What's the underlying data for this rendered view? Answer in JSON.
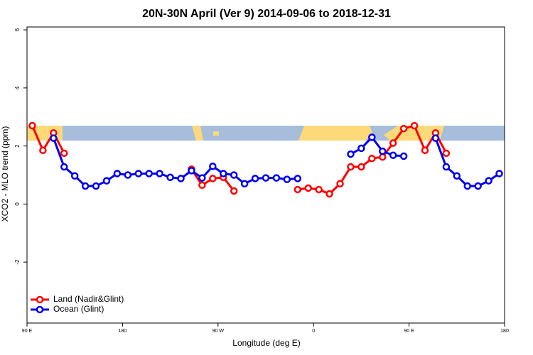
{
  "chart_data": {
    "type": "line",
    "title": "20N-30N April (Ver 9)   2014-09-06 to 2018-12-31",
    "xlabel": "Longitude (deg E)",
    "ylabel": "XCO2 - MLO trend (ppm)",
    "x": [
      95,
      105,
      115,
      125,
      135,
      145,
      155,
      165,
      175,
      185,
      195,
      205,
      215,
      225,
      235,
      245,
      255,
      265,
      275,
      285,
      295,
      305,
      315,
      325,
      335,
      345,
      355,
      365,
      375,
      385,
      395,
      405,
      415,
      425,
      435,
      445,
      455,
      465,
      475,
      485,
      495,
      505,
      515,
      525,
      535
    ],
    "series": [
      {
        "name": "Land (Nadir&Glint)",
        "color": "#ff0000",
        "values": [
          2.7,
          1.85,
          2.45,
          1.75,
          null,
          null,
          null,
          null,
          null,
          null,
          null,
          null,
          null,
          null,
          null,
          1.2,
          0.65,
          0.88,
          0.92,
          0.45,
          null,
          null,
          null,
          null,
          null,
          0.5,
          0.55,
          0.5,
          0.35,
          0.7,
          1.28,
          1.28,
          1.57,
          1.62,
          2.1,
          2.6,
          2.7,
          1.85,
          2.45,
          1.75,
          null,
          null,
          null,
          null,
          null
        ]
      },
      {
        "name": "Ocean (Glint)",
        "color": "#0000ee",
        "values": [
          null,
          null,
          2.27,
          1.28,
          0.97,
          0.62,
          0.62,
          0.8,
          1.05,
          1.0,
          1.05,
          1.05,
          1.05,
          0.92,
          0.88,
          1.15,
          0.9,
          1.3,
          1.05,
          1.0,
          0.7,
          0.88,
          0.9,
          0.9,
          0.85,
          0.88,
          null,
          null,
          null,
          null,
          1.72,
          1.92,
          2.3,
          1.82,
          1.68,
          1.65,
          null,
          null,
          2.27,
          1.28,
          0.97,
          0.62,
          0.62,
          0.8,
          1.05
        ]
      }
    ],
    "xlim": [
      90,
      540
    ],
    "xticks": [
      {
        "value": 90,
        "label": "90 E"
      },
      {
        "value": 180,
        "label": "180"
      },
      {
        "value": 270,
        "label": "90 W"
      },
      {
        "value": 360,
        "label": "0"
      },
      {
        "value": 450,
        "label": "90 E"
      },
      {
        "value": 540,
        "label": "180"
      }
    ],
    "ylim": [
      -4.1,
      6.1
    ],
    "yticks": [
      -2,
      0,
      2,
      4,
      6
    ],
    "legend": "bottom-left"
  }
}
